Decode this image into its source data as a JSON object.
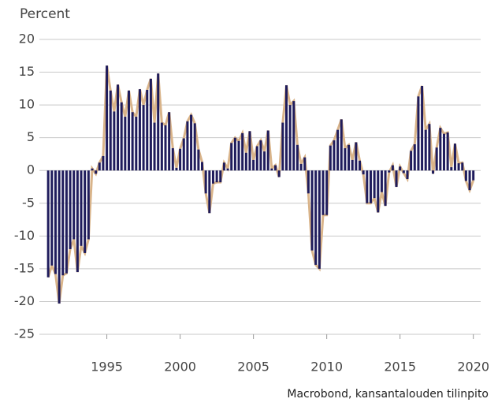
{
  "chart_data": {
    "type": "bar",
    "y_label": "Percent",
    "source": "Macrobond, kansantalouden tilinpito",
    "color": "#1f1c5c",
    "line_color": "#d9b48a",
    "grid": true,
    "xlim": [
      1990.4,
      2020.5
    ],
    "xticks": [
      1995,
      2000,
      2005,
      2010,
      2015,
      2020
    ],
    "ylim": [
      -25,
      20
    ],
    "yticks": [
      20,
      15,
      10,
      5,
      0,
      -5,
      -10,
      -15,
      -20,
      -25
    ],
    "x": [
      1991,
      1991.25,
      1991.5,
      1991.75,
      1992,
      1992.25,
      1992.5,
      1992.75,
      1993,
      1993.25,
      1993.5,
      1993.75,
      1994,
      1994.25,
      1994.5,
      1994.75,
      1995,
      1995.25,
      1995.5,
      1995.75,
      1996,
      1996.25,
      1996.5,
      1996.75,
      1997,
      1997.25,
      1997.5,
      1997.75,
      1998,
      1998.25,
      1998.5,
      1998.75,
      1999,
      1999.25,
      1999.5,
      1999.75,
      2000,
      2000.25,
      2000.5,
      2000.75,
      2001,
      2001.25,
      2001.5,
      2001.75,
      2002,
      2002.25,
      2002.5,
      2002.75,
      2003,
      2003.25,
      2003.5,
      2003.75,
      2004,
      2004.25,
      2004.5,
      2004.75,
      2005,
      2005.25,
      2005.5,
      2005.75,
      2006,
      2006.25,
      2006.5,
      2006.75,
      2007,
      2007.25,
      2007.5,
      2007.75,
      2008,
      2008.25,
      2008.5,
      2008.75,
      2009,
      2009.25,
      2009.5,
      2009.75,
      2010,
      2010.25,
      2010.5,
      2010.75,
      2011,
      2011.25,
      2011.5,
      2011.75,
      2012,
      2012.25,
      2012.5,
      2012.75,
      2013,
      2013.25,
      2013.5,
      2013.75,
      2014,
      2014.25,
      2014.5,
      2014.75,
      2015,
      2015.25,
      2015.5,
      2015.75,
      2016,
      2016.25,
      2016.5,
      2016.75,
      2017,
      2017.25,
      2017.5,
      2017.75,
      2018,
      2018.25,
      2018.5,
      2018.75,
      2019,
      2019.25,
      2019.5,
      2019.75,
      2020
    ],
    "values": [
      -16.3,
      -14.5,
      -15.8,
      -20.3,
      -16,
      -15.7,
      -12,
      -10.5,
      -15.5,
      -11.5,
      -12.6,
      -10.5,
      0.3,
      -0.5,
      1.2,
      2.2,
      16,
      12.2,
      9,
      13.1,
      10.4,
      8.2,
      12.2,
      8.9,
      8.2,
      12.4,
      10,
      12.3,
      14,
      7.3,
      14.8,
      7.3,
      6.9,
      8.9,
      3.4,
      0.4,
      3.3,
      4.9,
      7.5,
      8.5,
      7.2,
      3.2,
      1.3,
      -3.5,
      -6.5,
      -2,
      -1.8,
      -1.8,
      1.2,
      0.3,
      4.2,
      5,
      4.5,
      5.7,
      2.7,
      6,
      1.6,
      3.7,
      4.6,
      2.9,
      6.1,
      0.3,
      0.8,
      -1,
      7.3,
      13,
      10,
      10.6,
      3.9,
      1,
      2,
      -3.5,
      -12.2,
      -14.4,
      -15,
      -6.8,
      -6.8,
      3.8,
      4.6,
      6.2,
      7.8,
      3.4,
      3.9,
      1.6,
      4.3,
      1.5,
      -0.6,
      -5,
      -5,
      -4.2,
      -6.4,
      -3.3,
      -5.4,
      -0.3,
      0.8,
      -2.5,
      0.6,
      -0.4,
      -1.3,
      3,
      4,
      11.3,
      12.9,
      6.2,
      7.1,
      -0.5,
      3.5,
      6.5,
      5.6,
      5.8,
      0.5,
      4.1,
      1.1,
      1.2,
      -1.6,
      -3,
      -1.5
    ]
  }
}
